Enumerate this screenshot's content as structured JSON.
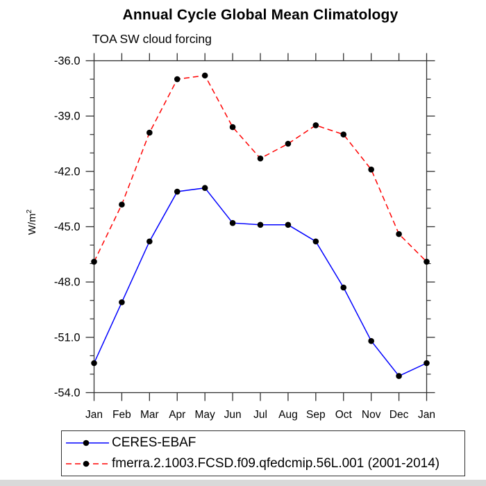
{
  "chart_data": {
    "type": "line",
    "title": "Annual Cycle Global Mean Climatology",
    "subtitle": "TOA SW cloud forcing",
    "xlabel": "",
    "ylabel": "W/m²",
    "categories": [
      "Jan",
      "Feb",
      "Mar",
      "Apr",
      "May",
      "Jun",
      "Jul",
      "Aug",
      "Sep",
      "Oct",
      "Nov",
      "Dec",
      "Jan"
    ],
    "y_axis": {
      "min": -54.0,
      "max": -36.0,
      "major_step": 3.0,
      "minor_step": 1.0,
      "major_tick_labels": [
        "-36.0",
        "-39.0",
        "-42.0",
        "-45.0",
        "-48.0",
        "-51.0",
        "-54.0"
      ]
    },
    "grid": "off",
    "legend_position": "bottom-left",
    "series": [
      {
        "name": "CERES-EBAF",
        "color": "#0000ff",
        "line_style": "solid",
        "marker": "filled-circle",
        "marker_color": "#000000",
        "values": [
          -52.4,
          -49.1,
          -45.8,
          -43.1,
          -42.9,
          -44.8,
          -44.9,
          -44.9,
          -45.8,
          -48.3,
          -51.2,
          -53.1,
          -52.4
        ]
      },
      {
        "name": "fmerra.2.1003.FCSD.f09.qfedcmip.56L.001 (2001-2014)",
        "color": "#ff0000",
        "line_style": "dashed",
        "marker": "filled-circle",
        "marker_color": "#000000",
        "values": [
          -46.9,
          -43.8,
          -39.9,
          -37.0,
          -36.8,
          -39.6,
          -41.3,
          -40.5,
          -39.5,
          -40.0,
          -41.9,
          -45.4,
          -46.9
        ]
      }
    ],
    "axis_color": "#2f2f2f"
  }
}
